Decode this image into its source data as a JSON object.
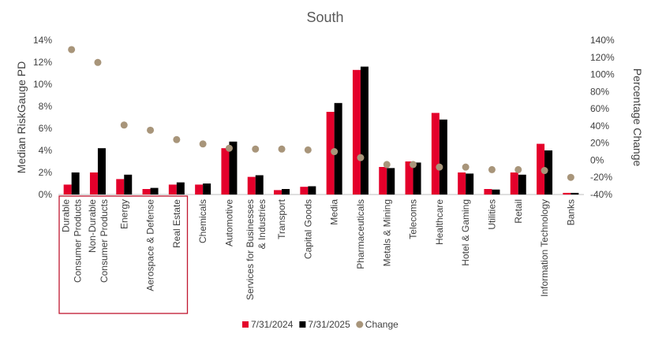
{
  "chart_data": {
    "type": "bar",
    "title": "South",
    "ylabel": "Median RiskGauge PD",
    "y2label": "Percentage Change",
    "ylim": [
      0,
      14
    ],
    "y2lim": [
      -40,
      140
    ],
    "yticks": [
      "0%",
      "2%",
      "4%",
      "6%",
      "8%",
      "10%",
      "12%",
      "14%"
    ],
    "y2ticks": [
      "-40%",
      "-20%",
      "0%",
      "20%",
      "40%",
      "60%",
      "80%",
      "100%",
      "120%",
      "140%"
    ],
    "categories": [
      [
        "Durable",
        "Consumer Products"
      ],
      [
        "Non-Durable",
        "Consumer Products"
      ],
      [
        "Energy"
      ],
      [
        "Aerospace & Defense"
      ],
      [
        "Real Estate"
      ],
      [
        "Chemicals"
      ],
      [
        "Automotive"
      ],
      [
        "Services for Businesses",
        "& Industries"
      ],
      [
        "Transport"
      ],
      [
        "Capital Goods"
      ],
      [
        "Media"
      ],
      [
        "Pharmaceuticals"
      ],
      [
        "Metals & Mining"
      ],
      [
        "Telecoms"
      ],
      [
        "Healthcare"
      ],
      [
        "Hotel & Gaming"
      ],
      [
        "Utilities"
      ],
      [
        "Retail"
      ],
      [
        "Information Technology"
      ],
      [
        "Banks"
      ]
    ],
    "series": [
      {
        "name": "7/31/2024",
        "kind": "bar",
        "axis": "left",
        "values": [
          0.9,
          2.0,
          1.4,
          0.5,
          0.9,
          0.9,
          4.2,
          1.6,
          0.4,
          0.7,
          7.5,
          11.3,
          2.5,
          3.0,
          7.4,
          2.0,
          0.5,
          2.0,
          4.6,
          0.15
        ]
      },
      {
        "name": "7/31/2025",
        "kind": "bar",
        "axis": "left",
        "values": [
          2.0,
          4.2,
          1.8,
          0.6,
          1.1,
          1.0,
          4.8,
          1.75,
          0.5,
          0.75,
          8.3,
          11.6,
          2.4,
          2.9,
          6.8,
          1.9,
          0.45,
          1.8,
          4.0,
          0.15
        ]
      },
      {
        "name": "Change",
        "kind": "scatter",
        "axis": "right",
        "values": [
          129,
          114,
          41,
          35,
          24,
          19,
          14,
          13,
          13,
          12,
          10,
          3,
          -5,
          -5,
          -8,
          -8,
          -11,
          -11,
          -12,
          -20
        ]
      }
    ],
    "colors": {
      "7/31/2024": "#E4002B",
      "7/31/2025": "#000000",
      "Change": "#A8957A",
      "highlight_box": "#C0172F"
    },
    "highlight_box_categories": 5,
    "legend": "bottom-center",
    "grid": false
  }
}
